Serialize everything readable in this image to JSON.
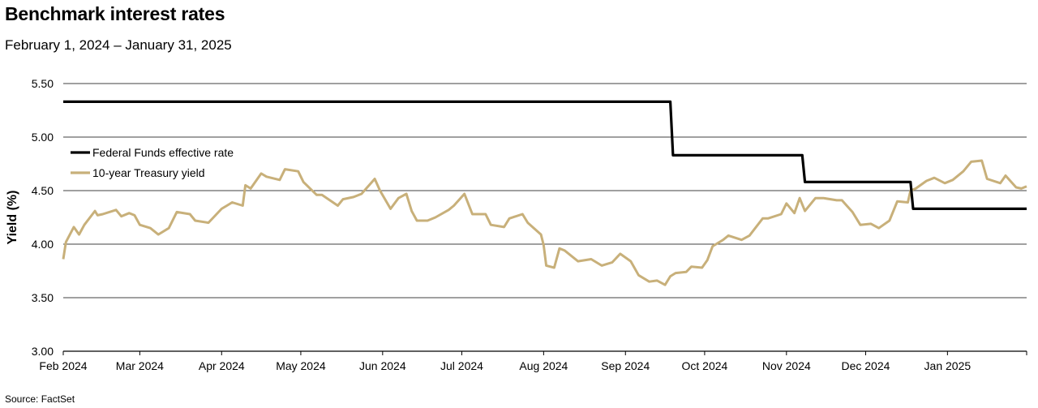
{
  "header": {
    "title": "Benchmark interest rates",
    "subtitle": "February 1, 2024 – January 31, 2025"
  },
  "footer": {
    "source": "Source: FactSet"
  },
  "chart_data": {
    "type": "line",
    "ylabel": "Yield (%)",
    "ylim": [
      3.0,
      5.5
    ],
    "yticks": [
      "3.00",
      "3.50",
      "4.00",
      "4.50",
      "5.00",
      "5.50"
    ],
    "ytick_values": [
      3.0,
      3.5,
      4.0,
      4.5,
      5.0,
      5.5
    ],
    "xlim": [
      "2024-02-01",
      "2025-01-31"
    ],
    "xtick_labels": [
      "Feb 2024",
      "Mar 2024",
      "Apr 2024",
      "May 2024",
      "Jun 2024",
      "Jul 2024",
      "Aug 2024",
      "Sep 2024",
      "Oct 2024",
      "Nov 2024",
      "Dec 2024",
      "Jan 2025"
    ],
    "xtick_dates": [
      "2024-02-01",
      "2024-03-01",
      "2024-04-01",
      "2024-05-01",
      "2024-06-01",
      "2024-07-01",
      "2024-08-01",
      "2024-09-01",
      "2024-10-01",
      "2024-11-01",
      "2024-12-01",
      "2025-01-01"
    ],
    "grid": "horizontal",
    "legend_position": "top-left",
    "series": [
      {
        "name": "Federal Funds effective rate",
        "color": "#000000",
        "step": true,
        "x": [
          "2024-02-01",
          "2024-09-18",
          "2024-09-19",
          "2024-11-07",
          "2024-11-08",
          "2024-12-18",
          "2024-12-19",
          "2025-01-31"
        ],
        "y": [
          5.33,
          5.33,
          4.83,
          4.83,
          4.58,
          4.58,
          4.33,
          4.33
        ]
      },
      {
        "name": "10-year Treasury yield",
        "color": "#c8b07a",
        "step": false,
        "x": [
          "2024-02-01",
          "2024-02-02",
          "2024-02-05",
          "2024-02-07",
          "2024-02-09",
          "2024-02-13",
          "2024-02-14",
          "2024-02-16",
          "2024-02-21",
          "2024-02-23",
          "2024-02-26",
          "2024-02-28",
          "2024-03-01",
          "2024-03-05",
          "2024-03-08",
          "2024-03-12",
          "2024-03-15",
          "2024-03-20",
          "2024-03-22",
          "2024-03-27",
          "2024-04-01",
          "2024-04-03",
          "2024-04-05",
          "2024-04-09",
          "2024-04-10",
          "2024-04-12",
          "2024-04-16",
          "2024-04-18",
          "2024-04-23",
          "2024-04-25",
          "2024-04-30",
          "2024-05-02",
          "2024-05-07",
          "2024-05-09",
          "2024-05-15",
          "2024-05-17",
          "2024-05-21",
          "2024-05-24",
          "2024-05-29",
          "2024-05-31",
          "2024-06-04",
          "2024-06-07",
          "2024-06-10",
          "2024-06-12",
          "2024-06-14",
          "2024-06-18",
          "2024-06-21",
          "2024-06-26",
          "2024-06-28",
          "2024-07-02",
          "2024-07-05",
          "2024-07-10",
          "2024-07-12",
          "2024-07-17",
          "2024-07-19",
          "2024-07-24",
          "2024-07-26",
          "2024-07-31",
          "2024-08-01",
          "2024-08-02",
          "2024-08-05",
          "2024-08-07",
          "2024-08-09",
          "2024-08-14",
          "2024-08-19",
          "2024-08-23",
          "2024-08-27",
          "2024-08-30",
          "2024-09-03",
          "2024-09-06",
          "2024-09-10",
          "2024-09-13",
          "2024-09-16",
          "2024-09-18",
          "2024-09-20",
          "2024-09-24",
          "2024-09-26",
          "2024-09-30",
          "2024-10-02",
          "2024-10-04",
          "2024-10-08",
          "2024-10-10",
          "2024-10-15",
          "2024-10-18",
          "2024-10-23",
          "2024-10-25",
          "2024-10-30",
          "2024-11-01",
          "2024-11-04",
          "2024-11-06",
          "2024-11-08",
          "2024-11-12",
          "2024-11-15",
          "2024-11-20",
          "2024-11-22",
          "2024-11-26",
          "2024-11-29",
          "2024-12-03",
          "2024-12-06",
          "2024-12-10",
          "2024-12-13",
          "2024-12-17",
          "2024-12-18",
          "2024-12-20",
          "2024-12-24",
          "2024-12-27",
          "2024-12-31",
          "2025-01-03",
          "2025-01-07",
          "2025-01-10",
          "2025-01-14",
          "2025-01-16",
          "2025-01-21",
          "2025-01-23",
          "2025-01-27",
          "2025-01-29",
          "2025-01-31"
        ],
        "y": [
          3.86,
          4.02,
          4.16,
          4.09,
          4.18,
          4.31,
          4.27,
          4.28,
          4.32,
          4.26,
          4.29,
          4.27,
          4.18,
          4.15,
          4.09,
          4.15,
          4.3,
          4.28,
          4.22,
          4.2,
          4.33,
          4.36,
          4.39,
          4.36,
          4.55,
          4.52,
          4.66,
          4.63,
          4.6,
          4.7,
          4.68,
          4.58,
          4.46,
          4.46,
          4.36,
          4.42,
          4.44,
          4.47,
          4.61,
          4.5,
          4.33,
          4.43,
          4.47,
          4.31,
          4.22,
          4.22,
          4.25,
          4.32,
          4.36,
          4.47,
          4.28,
          4.28,
          4.18,
          4.16,
          4.24,
          4.28,
          4.2,
          4.09,
          3.99,
          3.8,
          3.78,
          3.96,
          3.94,
          3.84,
          3.86,
          3.8,
          3.83,
          3.91,
          3.84,
          3.71,
          3.65,
          3.66,
          3.62,
          3.7,
          3.73,
          3.74,
          3.79,
          3.78,
          3.85,
          3.98,
          4.04,
          4.08,
          4.04,
          4.08,
          4.24,
          4.24,
          4.28,
          4.38,
          4.29,
          4.43,
          4.31,
          4.43,
          4.43,
          4.41,
          4.41,
          4.3,
          4.18,
          4.19,
          4.15,
          4.22,
          4.4,
          4.39,
          4.5,
          4.52,
          4.59,
          4.62,
          4.57,
          4.6,
          4.68,
          4.77,
          4.78,
          4.61,
          4.57,
          4.64,
          4.53,
          4.52,
          4.54
        ]
      }
    ]
  }
}
